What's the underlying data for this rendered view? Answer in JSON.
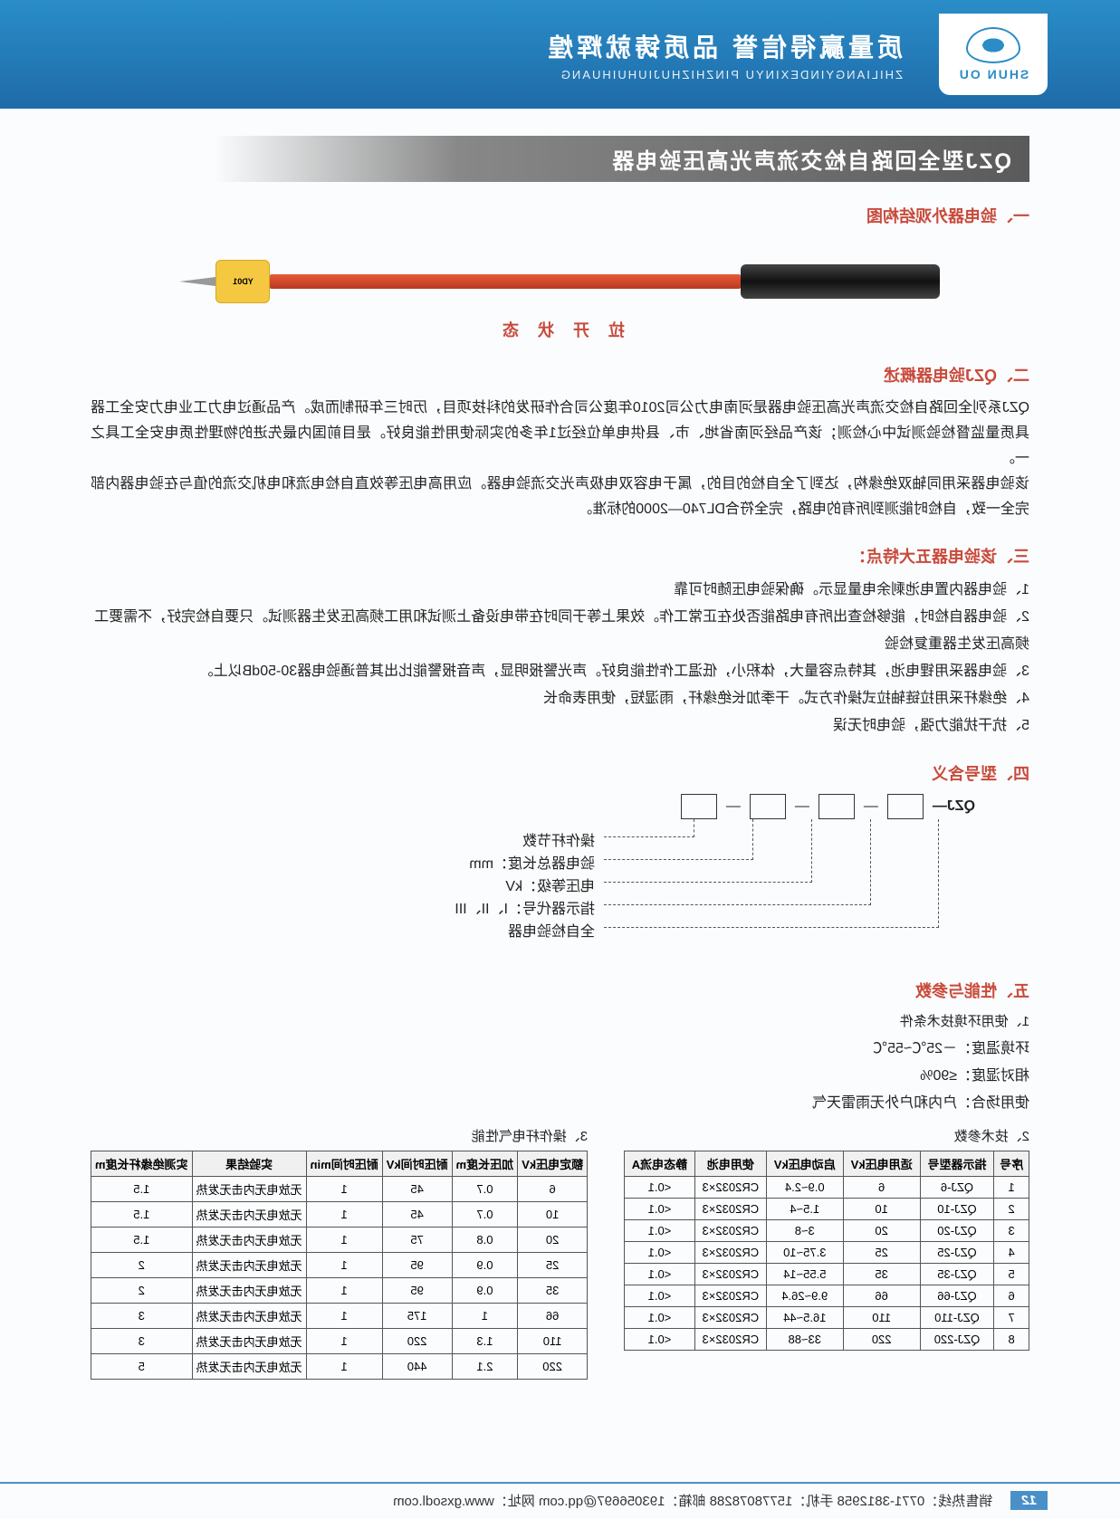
{
  "header": {
    "logo_text": "SHUN OU",
    "title": "质量赢得信誉 品质铸就辉煌",
    "subtitle": "ZHILIANGYINDEXINYU PINZHIZHUJIUHUIHUANG"
  },
  "main_title": "QZJ型全回路自检交流声光高压验电器",
  "sec1_title": "一、验电器外观结构图",
  "probe_label": "拉 开 状 态",
  "probe_head_label": "YD01",
  "sec2_title": "二、QZJ验电器概述",
  "sec2_body": "QZJ系列全回路自检交流声光高压验电器是河南电力公司2010年度公司合作研发的科技项目，历时三年研制而成。产品通过电力工业电力安全工器具质量监督检验测试中心检测；该产品经河南省地、市、县供电单位经过1年多的实际使用性能良好。是目前国内最先进的物理性质电安全工具之一。\n该验电器采用同轴双绝缘构，达到了全自检的目的，属于电容双电极声光交流验电器。应用高电压等效直自检电流和电机交流的值与在验电器内部完全一致，自检时能测到所有的电路，完全符合DL740—2000的标准。",
  "sec3_title": "三、该验电器五大特点：",
  "sec3_items": [
    "1、验电器内置电池剩余电量显示。确保验电压随时可靠",
    "2、验电器自检时，能够检查出所有电路能否处在正常工作。效果上等于同时在带电设备上测试和用工频高压发生器测试。只要自检完好，不需要工频高压发生器重复检验",
    "3、验电器采用锂电池，其特点容量大，体积小，低温工作性能良好。声光警报明显，声音报警能比出其普通验电器30-50dB以上。",
    "4、绝缘杆采用拉链轴拉式操作方式。干季加长绝缘杆，雨湿短，使用表命长",
    "5、抗干扰能力强，验电时无误"
  ],
  "sec4_title": "四、型号含义",
  "model_prefix": "QZJ—",
  "model_labels": [
    "操作杆节数",
    "验电器总长度：mm",
    "电压等级：kV",
    "指示器代号：I、II、III",
    "全自检验电器"
  ],
  "sec5_title": "五、性能与参数",
  "sub1": "1、使用环境技术条件",
  "env_lines": [
    "环境温度：－25℃~55℃",
    "相对湿度：≤90%",
    "使用场合：户内和户外无雨雷天气"
  ],
  "sub2": "2、技术参数",
  "table1_headers": [
    "序号",
    "指示器型号",
    "适用电压kV",
    "启动电压kV",
    "使用电池",
    "静态电流A"
  ],
  "table1_rows": [
    [
      "1",
      "QZJ-6",
      "6",
      "0.9~2.4",
      "CR2032×3",
      "<0.1"
    ],
    [
      "2",
      "QZJ-10",
      "10",
      "1.5~4",
      "CR2032×3",
      "<0.1"
    ],
    [
      "3",
      "QZJ-20",
      "20",
      "3~8",
      "CR2032×3",
      "<0.1"
    ],
    [
      "4",
      "QZJ-25",
      "25",
      "3.75~10",
      "CR2032×3",
      "<0.1"
    ],
    [
      "5",
      "QZJ-35",
      "35",
      "5.55~14",
      "CR2032×3",
      "<0.1"
    ],
    [
      "6",
      "QZJ-66",
      "66",
      "9.9~26.4",
      "CR2032×3",
      "<0.1"
    ],
    [
      "7",
      "QZJ-110",
      "110",
      "16.5~44",
      "CR2032×3",
      "<0.1"
    ],
    [
      "8",
      "QZJ-220",
      "220",
      "33~88",
      "CR2032×3",
      "<0.1"
    ]
  ],
  "sub3": "3、操作杆电气性能",
  "table2_headers": [
    "额定电压kV",
    "加压长度m",
    "耐压时间kV",
    "耐压时间min",
    "实验结果",
    "实测绝缘杆长度m"
  ],
  "table2_rows": [
    [
      "6",
      "0.7",
      "45",
      "1",
      "无放电无内击无发热",
      "1.5"
    ],
    [
      "10",
      "0.7",
      "45",
      "1",
      "无放电无内击无发热",
      "1.5"
    ],
    [
      "20",
      "0.8",
      "75",
      "1",
      "无放电无内击无发热",
      "1.5"
    ],
    [
      "25",
      "0.9",
      "95",
      "1",
      "无放电无内击无发热",
      "2"
    ],
    [
      "35",
      "0.9",
      "95",
      "1",
      "无放电无内击无发热",
      "2"
    ],
    [
      "66",
      "1",
      "175",
      "1",
      "无放电无内击无发热",
      "3"
    ],
    [
      "110",
      "1.3",
      "220",
      "1",
      "无放电无内击无发热",
      "3"
    ],
    [
      "220",
      "2.1",
      "440",
      "1",
      "无放电无内击无发热",
      "5"
    ]
  ],
  "footer": {
    "page": "12",
    "contact": "销售热线：0771-3812958 手机：15778078288 邮箱：193056697@qq.com 网址：www.gxsodl.com"
  }
}
